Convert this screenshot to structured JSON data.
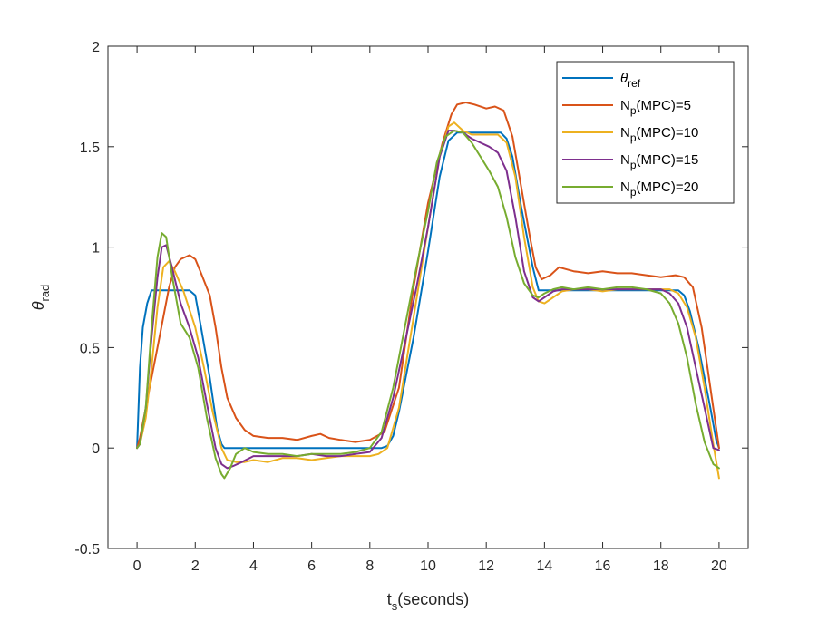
{
  "chart_data": {
    "type": "line",
    "xlabel": {
      "main": "t",
      "sub": "s",
      "rest": "(seconds)"
    },
    "ylabel": {
      "main": "θ",
      "sub": "rad"
    },
    "xlim": [
      -1,
      21
    ],
    "ylim": [
      -0.5,
      2
    ],
    "xticks": [
      0,
      2,
      4,
      6,
      8,
      10,
      12,
      14,
      16,
      18,
      20
    ],
    "yticks": [
      -0.5,
      0,
      0.5,
      1,
      1.5,
      2
    ],
    "xtick_labels": [
      "0",
      "2",
      "4",
      "6",
      "8",
      "10",
      "12",
      "14",
      "16",
      "18",
      "20"
    ],
    "ytick_labels": [
      "-0.5",
      "0",
      "0.5",
      "1",
      "1.5",
      "2"
    ],
    "grid": false,
    "legend_position": "top-right",
    "series": [
      {
        "name": "θref",
        "label": {
          "main": "θ",
          "sub": "ref",
          "rest": ""
        },
        "color": "#0072BD",
        "x": [
          0,
          0.1,
          0.2,
          0.35,
          0.5,
          1.5,
          1.8,
          2.0,
          2.2,
          2.5,
          2.75,
          2.9,
          3.0,
          8.4,
          8.6,
          8.8,
          9.0,
          9.5,
          10.0,
          10.4,
          10.7,
          11.0,
          12.5,
          12.7,
          12.9,
          13.2,
          13.6,
          13.8,
          18.6,
          18.8,
          19.0,
          19.3,
          19.7,
          19.9,
          20.0
        ],
        "y": [
          0,
          0.4,
          0.6,
          0.72,
          0.785,
          0.785,
          0.785,
          0.76,
          0.6,
          0.35,
          0.1,
          0.02,
          0,
          0,
          0.01,
          0.06,
          0.18,
          0.55,
          0.98,
          1.35,
          1.53,
          1.57,
          1.57,
          1.54,
          1.45,
          1.2,
          0.9,
          0.785,
          0.785,
          0.76,
          0.68,
          0.5,
          0.2,
          0.04,
          0
        ]
      },
      {
        "name": "Np(MPC)=5",
        "label": {
          "main": "N",
          "sub": "p",
          "rest": "(MPC)=5"
        },
        "color": "#D95319",
        "x": [
          0,
          0.1,
          0.3,
          0.5,
          0.7,
          0.9,
          1.1,
          1.3,
          1.5,
          1.8,
          2.0,
          2.2,
          2.5,
          2.7,
          2.9,
          3.1,
          3.4,
          3.7,
          4.0,
          4.5,
          5.0,
          5.5,
          6.0,
          6.3,
          6.6,
          7.0,
          7.5,
          8.0,
          8.5,
          9.0,
          9.5,
          10.0,
          10.5,
          10.8,
          11.0,
          11.3,
          11.6,
          12.0,
          12.3,
          12.6,
          12.9,
          13.2,
          13.5,
          13.7,
          13.9,
          14.2,
          14.5,
          15.0,
          15.5,
          16.0,
          16.5,
          17.0,
          17.5,
          18.0,
          18.5,
          18.8,
          19.1,
          19.4,
          19.7,
          20.0
        ],
        "y": [
          0,
          0.05,
          0.2,
          0.35,
          0.5,
          0.65,
          0.8,
          0.9,
          0.94,
          0.96,
          0.94,
          0.87,
          0.76,
          0.6,
          0.4,
          0.25,
          0.15,
          0.09,
          0.06,
          0.05,
          0.05,
          0.04,
          0.06,
          0.07,
          0.05,
          0.04,
          0.03,
          0.04,
          0.08,
          0.3,
          0.8,
          1.22,
          1.52,
          1.66,
          1.71,
          1.72,
          1.71,
          1.69,
          1.7,
          1.68,
          1.55,
          1.3,
          1.05,
          0.9,
          0.84,
          0.86,
          0.9,
          0.88,
          0.87,
          0.88,
          0.87,
          0.87,
          0.86,
          0.85,
          0.86,
          0.85,
          0.8,
          0.6,
          0.3,
          0.0
        ]
      },
      {
        "name": "Np(MPC)=10",
        "label": {
          "main": "N",
          "sub": "p",
          "rest": "(MPC)=10"
        },
        "color": "#EDB120",
        "x": [
          0,
          0.1,
          0.3,
          0.5,
          0.7,
          0.9,
          1.1,
          1.3,
          1.6,
          2.0,
          2.3,
          2.6,
          2.9,
          3.1,
          3.4,
          3.7,
          4.0,
          4.5,
          5.0,
          5.5,
          6.0,
          6.5,
          7.0,
          7.5,
          8.0,
          8.3,
          8.6,
          9.0,
          9.5,
          10.0,
          10.4,
          10.7,
          10.9,
          11.2,
          11.5,
          11.8,
          12.1,
          12.4,
          12.7,
          13.0,
          13.3,
          13.6,
          13.8,
          14.0,
          14.3,
          14.6,
          15.0,
          15.5,
          16.0,
          16.5,
          17.0,
          17.5,
          18.0,
          18.3,
          18.6,
          18.9,
          19.2,
          19.5,
          19.8,
          20.0
        ],
        "y": [
          0,
          0.02,
          0.15,
          0.4,
          0.7,
          0.9,
          0.93,
          0.88,
          0.78,
          0.6,
          0.4,
          0.18,
          0.0,
          -0.06,
          -0.07,
          -0.07,
          -0.06,
          -0.07,
          -0.05,
          -0.05,
          -0.06,
          -0.05,
          -0.04,
          -0.04,
          -0.04,
          -0.03,
          0.0,
          0.2,
          0.65,
          1.1,
          1.45,
          1.6,
          1.62,
          1.58,
          1.56,
          1.56,
          1.56,
          1.56,
          1.52,
          1.35,
          1.05,
          0.8,
          0.73,
          0.72,
          0.75,
          0.78,
          0.79,
          0.79,
          0.78,
          0.79,
          0.79,
          0.79,
          0.79,
          0.79,
          0.77,
          0.7,
          0.55,
          0.3,
          0.02,
          -0.15
        ]
      },
      {
        "name": "Np(MPC)=15",
        "label": {
          "main": "N",
          "sub": "p",
          "rest": "(MPC)=15"
        },
        "color": "#7E2F8E",
        "x": [
          0,
          0.1,
          0.3,
          0.5,
          0.7,
          0.85,
          1.0,
          1.2,
          1.5,
          1.8,
          2.1,
          2.4,
          2.7,
          2.9,
          3.1,
          3.3,
          3.6,
          4.0,
          4.5,
          5.0,
          5.5,
          6.0,
          6.5,
          7.0,
          7.5,
          8.0,
          8.4,
          8.8,
          9.2,
          9.6,
          10.0,
          10.4,
          10.7,
          10.9,
          11.2,
          11.5,
          11.8,
          12.1,
          12.4,
          12.7,
          13.0,
          13.3,
          13.6,
          13.8,
          14.0,
          14.3,
          14.6,
          15.0,
          15.5,
          16.0,
          16.5,
          17.0,
          17.5,
          18.0,
          18.3,
          18.6,
          18.9,
          19.2,
          19.5,
          19.8,
          20.0
        ],
        "y": [
          0,
          0.02,
          0.2,
          0.55,
          0.85,
          1.0,
          1.01,
          0.9,
          0.72,
          0.6,
          0.45,
          0.22,
          0.0,
          -0.08,
          -0.1,
          -0.09,
          -0.07,
          -0.04,
          -0.04,
          -0.04,
          -0.04,
          -0.03,
          -0.04,
          -0.04,
          -0.03,
          -0.02,
          0.05,
          0.25,
          0.52,
          0.8,
          1.1,
          1.45,
          1.58,
          1.58,
          1.57,
          1.54,
          1.52,
          1.5,
          1.47,
          1.38,
          1.15,
          0.88,
          0.75,
          0.73,
          0.75,
          0.78,
          0.79,
          0.79,
          0.79,
          0.79,
          0.79,
          0.79,
          0.79,
          0.79,
          0.77,
          0.72,
          0.6,
          0.4,
          0.2,
          0.0,
          -0.01
        ]
      },
      {
        "name": "Np(MPC)=20",
        "label": {
          "main": "N",
          "sub": "p",
          "rest": "(MPC)=20"
        },
        "color": "#77AC30",
        "x": [
          0,
          0.1,
          0.3,
          0.5,
          0.7,
          0.85,
          1.0,
          1.2,
          1.5,
          1.8,
          2.1,
          2.4,
          2.7,
          2.9,
          3.0,
          3.2,
          3.4,
          3.7,
          4.0,
          4.5,
          5.0,
          5.5,
          6.0,
          6.5,
          7.0,
          7.5,
          8.0,
          8.4,
          8.8,
          9.2,
          9.6,
          10.0,
          10.3,
          10.6,
          10.9,
          11.2,
          11.5,
          11.8,
          12.1,
          12.4,
          12.7,
          13.0,
          13.3,
          13.6,
          13.8,
          14.0,
          14.3,
          14.6,
          15.0,
          15.5,
          16.0,
          16.5,
          17.0,
          17.5,
          18.0,
          18.3,
          18.6,
          18.9,
          19.2,
          19.5,
          19.8,
          20.0
        ],
        "y": [
          0,
          0.02,
          0.2,
          0.6,
          0.95,
          1.07,
          1.05,
          0.86,
          0.62,
          0.55,
          0.4,
          0.15,
          -0.05,
          -0.13,
          -0.15,
          -0.1,
          -0.03,
          0.0,
          -0.02,
          -0.03,
          -0.03,
          -0.04,
          -0.03,
          -0.03,
          -0.03,
          -0.02,
          0.0,
          0.08,
          0.3,
          0.6,
          0.9,
          1.18,
          1.42,
          1.55,
          1.58,
          1.57,
          1.52,
          1.45,
          1.38,
          1.3,
          1.15,
          0.95,
          0.82,
          0.76,
          0.75,
          0.77,
          0.79,
          0.8,
          0.79,
          0.8,
          0.79,
          0.8,
          0.8,
          0.79,
          0.77,
          0.72,
          0.62,
          0.45,
          0.22,
          0.03,
          -0.08,
          -0.1
        ]
      }
    ]
  }
}
